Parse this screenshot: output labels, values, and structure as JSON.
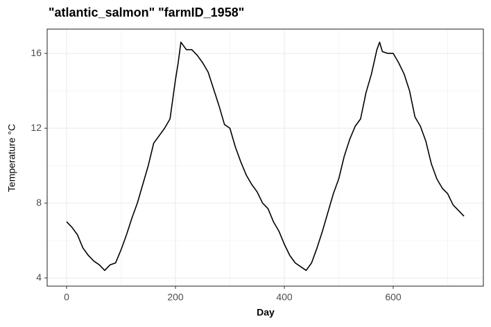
{
  "chart_data": {
    "type": "line",
    "title": "\"atlantic_salmon\" \"farmID_1958\"",
    "x_label": "Day",
    "y_label": "Temperature °C",
    "x": [
      0,
      10,
      20,
      30,
      40,
      50,
      60,
      70,
      80,
      90,
      100,
      110,
      120,
      130,
      140,
      150,
      160,
      170,
      180,
      190,
      200,
      205,
      210,
      220,
      230,
      240,
      250,
      260,
      270,
      280,
      290,
      300,
      310,
      320,
      330,
      340,
      350,
      360,
      370,
      380,
      390,
      400,
      410,
      420,
      430,
      440,
      450,
      460,
      470,
      480,
      490,
      500,
      510,
      520,
      530,
      540,
      550,
      560,
      570,
      575,
      580,
      590,
      600,
      610,
      620,
      630,
      640,
      650,
      660,
      670,
      680,
      690,
      700,
      710,
      720,
      730
    ],
    "series": [
      {
        "color": "#000000",
        "values": [
          7.0,
          6.7,
          6.3,
          5.6,
          5.2,
          4.9,
          4.7,
          4.4,
          4.7,
          4.8,
          5.5,
          6.3,
          7.2,
          8.0,
          9.0,
          10.0,
          11.2,
          11.6,
          12.0,
          12.5,
          14.6,
          15.5,
          16.6,
          16.2,
          16.2,
          15.9,
          15.5,
          15.0,
          14.1,
          13.2,
          12.2,
          12.0,
          11.0,
          10.2,
          9.5,
          9.0,
          8.6,
          8.0,
          7.7,
          7.0,
          6.5,
          5.8,
          5.2,
          4.8,
          4.6,
          4.4,
          4.8,
          5.6,
          6.5,
          7.5,
          8.5,
          9.3,
          10.5,
          11.4,
          12.1,
          12.5,
          13.9,
          14.9,
          16.2,
          16.6,
          16.1,
          16.0,
          16.0,
          15.5,
          14.9,
          14.0,
          12.6,
          12.1,
          11.3,
          10.1,
          9.3,
          8.8,
          8.5,
          7.9,
          7.6,
          7.3
        ]
      }
    ],
    "xlim": [
      -35.7,
      765.6
    ],
    "xticks": [
      0,
      200,
      400,
      600
    ],
    "ylim": [
      3.56,
      17.3
    ],
    "yticks": [
      4,
      8,
      12,
      16
    ],
    "grid": true
  }
}
